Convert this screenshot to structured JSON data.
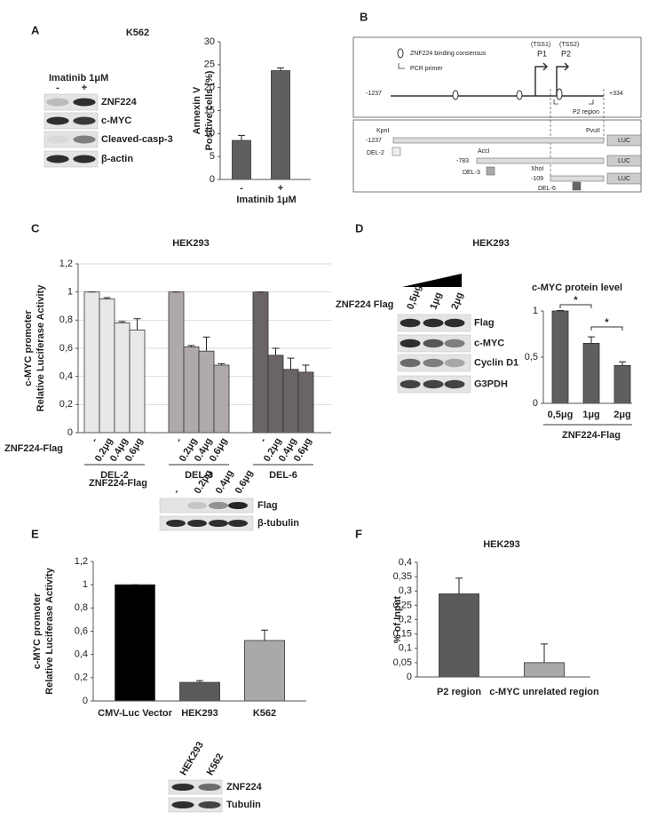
{
  "panel_labels": [
    "A",
    "B",
    "C",
    "D",
    "E",
    "F"
  ],
  "blots": {
    "A": {
      "title": "K562",
      "treatment": "Imatinib 1μM",
      "lanes": [
        "-",
        "+"
      ],
      "bands": [
        "ZNF224",
        "c-MYC",
        "Cleaved-casp-3",
        "β-actin"
      ]
    },
    "C": {
      "treatment": "ZNF224-Flag",
      "lanes": [
        "-",
        "0.2μg",
        "0.4μg",
        "0.6μg"
      ],
      "bands": [
        "Flag",
        "β-tubulin"
      ]
    },
    "D": {
      "title": "HEK293",
      "treatment": "ZNF224 Flag",
      "lanes": [
        "0,5μg",
        "1μg",
        "2μg"
      ],
      "bands": [
        "Flag",
        "c-MYC",
        "Cyclin D1",
        "G3PDH"
      ]
    },
    "E": {
      "lanes": [
        "HEK293",
        "K562"
      ],
      "bands": [
        "ZNF224",
        "Tubulin"
      ]
    }
  },
  "diagram": {
    "legend": [
      "ZNF224 binding consensus",
      "PCR primer"
    ],
    "tss": [
      "(TSS1)",
      "(TSS2)"
    ],
    "promoters": [
      "P1",
      "P2"
    ],
    "start": "-1237",
    "end": "+334",
    "region": "P2 region",
    "end_site": "PvuII",
    "constructs": [
      {
        "site": "KpnI",
        "start": "-1237",
        "reporter": "LUC",
        "name": "DEL-2"
      },
      {
        "site": "AccI",
        "start": "-783",
        "reporter": "LUC",
        "name": "DEL-3"
      },
      {
        "site": "XhoI",
        "start": "-109",
        "reporter": "LUC",
        "name": "DEL-6"
      }
    ]
  },
  "chart_data": [
    {
      "type": "bar",
      "y_label": [
        "Annexin V",
        "Positive cells (%)"
      ],
      "x_label": "Imatinib 1μM",
      "categories": [
        "-",
        "+"
      ],
      "values": [
        8.5,
        23.7
      ],
      "errors": [
        1.1,
        0.6
      ],
      "color": "#5f5f5f",
      "ylim": [
        0,
        30
      ],
      "yticks": [
        0,
        5,
        10,
        15,
        20,
        25,
        30
      ]
    },
    {
      "type": "bar",
      "title": "HEK293",
      "y_label": [
        "c-MYC promoter",
        "Relative Luciferase  Activity"
      ],
      "x_label": "ZNF224-Flag",
      "groups": [
        "DEL-2",
        "DEL-3",
        "DEL-6"
      ],
      "categories": [
        "-",
        "0.2μg",
        "0.4μg",
        "0.6μg",
        "-",
        "0.2μg",
        "0.4μg",
        "0.6μg",
        "-",
        "0.2μg",
        "0.4μg",
        "0.6μg"
      ],
      "values": [
        1,
        0.95,
        0.78,
        0.73,
        1,
        0.61,
        0.58,
        0.48,
        1,
        0.55,
        0.45,
        0.43
      ],
      "errors": [
        0,
        0.01,
        0.01,
        0.08,
        0,
        0.01,
        0.1,
        0.01,
        0,
        0.05,
        0.08,
        0.05
      ],
      "colors": [
        "#e8e8e8",
        "#e8e8e8",
        "#e8e8e8",
        "#e8e8e8",
        "#b0a9a9",
        "#b0a9a9",
        "#b0a9a9",
        "#b0a9a9",
        "#6a6464",
        "#6a6464",
        "#6a6464",
        "#6a6464"
      ],
      "ylim": [
        0,
        1.2
      ],
      "grid": true,
      "yticks": [
        0,
        {
          "value": 0.2,
          "label": "0,2"
        },
        {
          "value": 0.4,
          "label": "0,4"
        },
        {
          "value": 0.6,
          "label": "0,6"
        },
        {
          "value": 0.8,
          "label": "0,8"
        },
        1,
        {
          "value": 1.2,
          "label": "1,2"
        }
      ]
    },
    {
      "type": "bar",
      "title": "c-MYC protein level",
      "x_label": "ZNF224-Flag",
      "categories": [
        "0,5μg",
        "1μg",
        "2μg"
      ],
      "values": [
        1,
        0.65,
        0.41
      ],
      "errors": [
        0.005,
        0.07,
        0.04
      ],
      "color": "#5f5f5f",
      "ylim": [
        0,
        1
      ],
      "yticks": [
        0,
        {
          "value": 0.5,
          "label": "0,5"
        },
        1
      ],
      "annotations": [
        "*",
        "*"
      ]
    },
    {
      "type": "bar",
      "y_label": [
        "c-MYC promoter",
        "Relative Luciferase  Activity"
      ],
      "categories": [
        "CMV-Luc Vector",
        "HEK293",
        "K562"
      ],
      "values": [
        1,
        0.16,
        0.52
      ],
      "errors": [
        0,
        0.015,
        0.09
      ],
      "colors": [
        "#000000",
        "#5a5a5a",
        "#a9a9a9"
      ],
      "ylim": [
        0,
        1.2
      ],
      "yticks": [
        0,
        {
          "value": 0.2,
          "label": "0,2"
        },
        {
          "value": 0.4,
          "label": "0,4"
        },
        {
          "value": 0.6,
          "label": "0,6"
        },
        {
          "value": 0.8,
          "label": "0,8"
        },
        1,
        {
          "value": 1.2,
          "label": "1,2"
        }
      ]
    },
    {
      "type": "bar",
      "title": "HEK293",
      "y_label": [
        "% of Input"
      ],
      "categories": [
        "P2 region",
        "c-MYC unrelated region"
      ],
      "values": [
        0.29,
        0.05
      ],
      "errors": [
        0.055,
        0.065
      ],
      "colors": [
        "#5a5a5a",
        "#a9a9a9"
      ],
      "ylim": [
        0,
        0.4
      ],
      "yticks": [
        0,
        {
          "value": 0.05,
          "label": "0,05"
        },
        {
          "value": 0.1,
          "label": "0,1"
        },
        {
          "value": 0.15,
          "label": "0,15"
        },
        {
          "value": 0.2,
          "label": "0,2"
        },
        {
          "value": 0.25,
          "label": "0,25"
        },
        {
          "value": 0.3,
          "label": "0,3"
        },
        {
          "value": 0.35,
          "label": "0,35"
        },
        {
          "value": 0.4,
          "label": "0,4"
        }
      ]
    }
  ]
}
